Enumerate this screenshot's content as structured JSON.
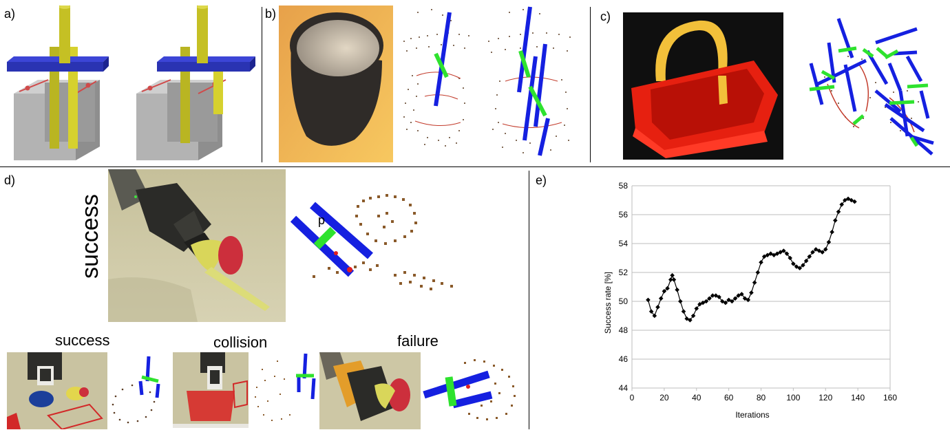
{
  "panels": {
    "a": "a)",
    "b": "b)",
    "c": "c)",
    "d": "d)",
    "e": "e)"
  },
  "panel_d": {
    "main_caption": "success",
    "point_label": "p",
    "small_captions": [
      "success",
      "collision",
      "failure"
    ]
  },
  "chart_data": {
    "type": "line",
    "title": "",
    "xlabel": "Iterations",
    "ylabel": "Success rate [%]",
    "xlim": [
      0,
      160
    ],
    "ylim": [
      44,
      58
    ],
    "xticks": [
      0,
      20,
      40,
      60,
      80,
      100,
      120,
      140,
      160
    ],
    "yticks": [
      44,
      46,
      48,
      50,
      52,
      54,
      56,
      58
    ],
    "grid": "horizontal",
    "marker": "diamond",
    "series": [
      {
        "x": [
          10,
          12,
          14,
          16,
          18,
          20,
          22,
          24,
          25,
          26,
          28,
          30,
          32,
          34,
          36,
          38,
          40,
          42,
          44,
          46,
          48,
          50,
          52,
          54,
          56,
          58,
          60,
          62,
          64,
          66,
          68,
          70,
          72,
          74,
          76,
          78,
          80,
          82,
          84,
          86,
          88,
          90,
          92,
          94,
          96,
          98,
          100,
          102,
          104,
          106,
          108,
          110,
          112,
          114,
          116,
          118,
          120,
          122,
          124,
          126,
          128,
          130,
          132,
          134,
          136,
          138
        ],
        "y": [
          50.1,
          49.3,
          49.0,
          49.6,
          50.2,
          50.7,
          50.9,
          51.5,
          51.8,
          51.5,
          50.8,
          50.0,
          49.3,
          48.8,
          48.7,
          49.0,
          49.5,
          49.8,
          49.9,
          50.0,
          50.2,
          50.4,
          50.4,
          50.3,
          50.0,
          49.9,
          50.1,
          50.0,
          50.2,
          50.4,
          50.5,
          50.2,
          50.1,
          50.6,
          51.3,
          52.0,
          52.7,
          53.1,
          53.2,
          53.3,
          53.2,
          53.3,
          53.4,
          53.5,
          53.3,
          53.0,
          52.6,
          52.4,
          52.3,
          52.5,
          52.8,
          53.1,
          53.4,
          53.6,
          53.5,
          53.4,
          53.6,
          54.1,
          54.8,
          55.6,
          56.2,
          56.7,
          57.0,
          57.1,
          57.0,
          56.9
        ]
      }
    ]
  }
}
